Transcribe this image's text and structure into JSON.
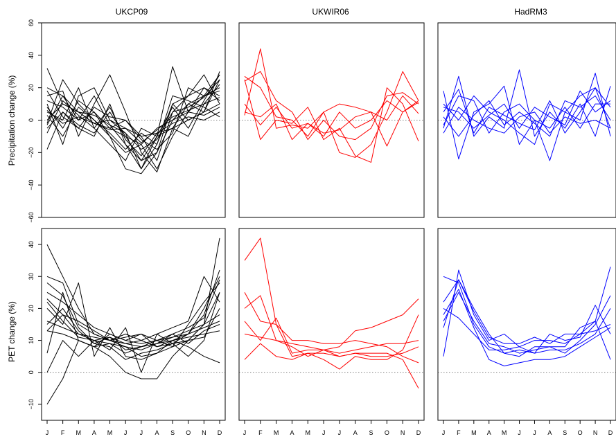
{
  "chart_data": {
    "type": "line",
    "months": [
      "J",
      "F",
      "M",
      "A",
      "M",
      "J",
      "J",
      "A",
      "S",
      "O",
      "N",
      "D"
    ],
    "zero_line": 0,
    "rows": [
      {
        "ylabel": "Precipitation change (%)",
        "ylim": [
          -60,
          60
        ],
        "yticks": [
          -60,
          -40,
          -20,
          0,
          20,
          40,
          60
        ]
      },
      {
        "ylabel": "PET change (%)",
        "ylim": [
          -15,
          45
        ],
        "yticks": [
          -10,
          0,
          10,
          20,
          30,
          40
        ]
      }
    ],
    "columns": [
      {
        "title": "UKCP09",
        "color": "#000000"
      },
      {
        "title": "UKWIR06",
        "color": "#ff0000"
      },
      {
        "title": "HadRM3",
        "color": "#0000ff"
      }
    ],
    "panels": [
      {
        "row": 0,
        "col": 0,
        "series": [
          [
            32,
            10,
            5,
            -2,
            0,
            -8,
            -30,
            -10,
            -5,
            10,
            15,
            28
          ],
          [
            20,
            15,
            0,
            5,
            -5,
            -10,
            -25,
            -20,
            0,
            10,
            5,
            25
          ],
          [
            -2,
            25,
            10,
            0,
            -10,
            -20,
            -15,
            -30,
            -10,
            5,
            20,
            15
          ],
          [
            10,
            -15,
            15,
            20,
            0,
            -5,
            -10,
            -25,
            5,
            15,
            28,
            10
          ],
          [
            -18,
            5,
            -5,
            -10,
            10,
            -15,
            -30,
            -15,
            10,
            0,
            5,
            30
          ],
          [
            5,
            0,
            20,
            -5,
            -15,
            -25,
            -5,
            -10,
            33,
            5,
            15,
            20
          ],
          [
            15,
            18,
            -10,
            10,
            28,
            5,
            -20,
            -32,
            -5,
            -10,
            10,
            22
          ],
          [
            0,
            10,
            5,
            -2,
            -5,
            0,
            -10,
            -8,
            -5,
            0,
            5,
            10
          ],
          [
            -5,
            5,
            -3,
            -8,
            5,
            -10,
            -15,
            -5,
            0,
            5,
            3,
            8
          ],
          [
            8,
            -5,
            12,
            5,
            -10,
            -30,
            -33,
            -20,
            10,
            15,
            20,
            12
          ],
          [
            12,
            8,
            0,
            15,
            -3,
            -8,
            -18,
            -12,
            5,
            8,
            14,
            25
          ],
          [
            -8,
            12,
            3,
            -5,
            8,
            -12,
            -22,
            -8,
            -2,
            2,
            0,
            5
          ],
          [
            3,
            -10,
            8,
            0,
            -8,
            -18,
            -8,
            -15,
            15,
            12,
            8,
            2
          ],
          [
            18,
            2,
            -5,
            8,
            2,
            0,
            -12,
            -18,
            -8,
            20,
            15,
            18
          ],
          [
            -3,
            15,
            5,
            3,
            -3,
            -15,
            -25,
            -10,
            8,
            -5,
            12,
            28
          ],
          [
            6,
            -2,
            2,
            -2,
            -6,
            -5,
            -14,
            -6,
            2,
            6,
            10,
            14
          ]
        ]
      },
      {
        "row": 0,
        "col": 1,
        "series": [
          [
            27,
            20,
            2,
            0,
            -10,
            5,
            -20,
            -23,
            -15,
            5,
            30,
            12
          ],
          [
            25,
            -12,
            0,
            -2,
            8,
            -12,
            -5,
            -22,
            -26,
            20,
            10,
            -13
          ],
          [
            3,
            44,
            -5,
            -3,
            -5,
            5,
            10,
            8,
            5,
            0,
            15,
            4
          ],
          [
            5,
            2,
            10,
            -12,
            -2,
            -10,
            5,
            -5,
            0,
            12,
            5,
            12
          ],
          [
            24,
            30,
            12,
            5,
            -12,
            0,
            -10,
            -12,
            -5,
            15,
            17,
            10
          ],
          [
            10,
            -3,
            8,
            -5,
            -2,
            -8,
            -6,
            2,
            5,
            -16,
            5,
            11
          ]
        ]
      },
      {
        "row": 0,
        "col": 2,
        "series": [
          [
            18,
            -24,
            5,
            10,
            21,
            -15,
            0,
            -25,
            5,
            15,
            20,
            -5
          ],
          [
            -5,
            27,
            -10,
            2,
            -5,
            31,
            -10,
            5,
            -5,
            10,
            -10,
            21
          ],
          [
            10,
            0,
            15,
            5,
            0,
            -8,
            -15,
            10,
            5,
            0,
            29,
            -10
          ],
          [
            -3,
            15,
            12,
            -8,
            5,
            10,
            0,
            -5,
            8,
            -5,
            10,
            10
          ],
          [
            2,
            -10,
            3,
            12,
            -3,
            5,
            -2,
            -10,
            12,
            8,
            15,
            0
          ],
          [
            8,
            5,
            -5,
            3,
            10,
            -5,
            8,
            2,
            -3,
            18,
            5,
            12
          ],
          [
            -8,
            8,
            0,
            -5,
            -8,
            2,
            5,
            -8,
            2,
            -2,
            0,
            -5
          ],
          [
            5,
            19,
            -8,
            8,
            3,
            -2,
            -6,
            12,
            -8,
            5,
            20,
            8
          ]
        ]
      },
      {
        "row": 1,
        "col": 0,
        "series": [
          [
            40,
            30,
            20,
            12,
            10,
            8,
            5,
            6,
            8,
            10,
            15,
            42
          ],
          [
            -10,
            -2,
            10,
            8,
            5,
            0,
            -2,
            -2,
            5,
            10,
            15,
            25
          ],
          [
            30,
            28,
            15,
            12,
            10,
            12,
            10,
            8,
            10,
            12,
            20,
            30
          ],
          [
            6,
            25,
            10,
            8,
            12,
            10,
            12,
            10,
            8,
            15,
            22,
            28
          ],
          [
            20,
            15,
            28,
            5,
            14,
            5,
            4,
            6,
            10,
            8,
            5,
            3
          ],
          [
            0,
            10,
            5,
            10,
            7,
            14,
            0,
            12,
            9,
            5,
            10,
            25
          ],
          [
            15,
            20,
            13,
            9,
            11,
            9,
            10,
            12,
            14,
            16,
            30,
            22
          ],
          [
            23,
            18,
            12,
            10,
            11,
            7,
            8,
            9,
            11,
            13,
            15,
            18
          ],
          [
            13,
            12,
            10,
            8,
            9,
            6,
            8,
            10,
            12,
            14,
            17,
            29
          ],
          [
            25,
            22,
            18,
            14,
            12,
            10,
            9,
            10,
            11,
            12,
            14,
            16
          ],
          [
            16,
            14,
            12,
            11,
            10,
            9,
            8,
            9,
            10,
            11,
            12,
            13
          ],
          [
            28,
            24,
            14,
            9,
            8,
            4,
            6,
            7,
            9,
            12,
            18,
            32
          ],
          [
            13,
            18,
            16,
            13,
            10,
            11,
            12,
            8,
            9,
            10,
            11,
            20
          ],
          [
            22,
            16,
            11,
            10,
            9,
            8,
            7,
            9,
            12,
            9,
            13,
            15
          ]
        ]
      },
      {
        "row": 1,
        "col": 1,
        "series": [
          [
            35,
            42,
            15,
            5,
            6,
            6,
            5,
            6,
            6,
            6,
            4,
            -5
          ],
          [
            25,
            16,
            15,
            10,
            10,
            9,
            9,
            10,
            9,
            8,
            5,
            3
          ],
          [
            20,
            24,
            10,
            8,
            5,
            7,
            8,
            13,
            14,
            16,
            18,
            23
          ],
          [
            4,
            9,
            5,
            4,
            6,
            4,
            1,
            5,
            4,
            4,
            7,
            18
          ],
          [
            12,
            11,
            10,
            9,
            8,
            7,
            6,
            7,
            8,
            9,
            9,
            10
          ],
          [
            16,
            10,
            17,
            6,
            7,
            7,
            5,
            6,
            5,
            5,
            6,
            8
          ]
        ]
      },
      {
        "row": 1,
        "col": 2,
        "series": [
          [
            5,
            32,
            18,
            10,
            12,
            8,
            10,
            10,
            9,
            12,
            16,
            33
          ],
          [
            30,
            28,
            15,
            8,
            6,
            5,
            8,
            8,
            6,
            10,
            15,
            24
          ],
          [
            22,
            29,
            20,
            12,
            6,
            7,
            6,
            7,
            7,
            9,
            12,
            20
          ],
          [
            18,
            26,
            14,
            4,
            2,
            3,
            4,
            4,
            5,
            8,
            11,
            14
          ],
          [
            20,
            17,
            12,
            7,
            7,
            8,
            6,
            12,
            10,
            11,
            21,
            12
          ],
          [
            14,
            29,
            19,
            11,
            9,
            9,
            11,
            9,
            12,
            12,
            13,
            15
          ],
          [
            16,
            25,
            16,
            9,
            8,
            6,
            7,
            8,
            8,
            14,
            16,
            4
          ]
        ]
      }
    ]
  }
}
